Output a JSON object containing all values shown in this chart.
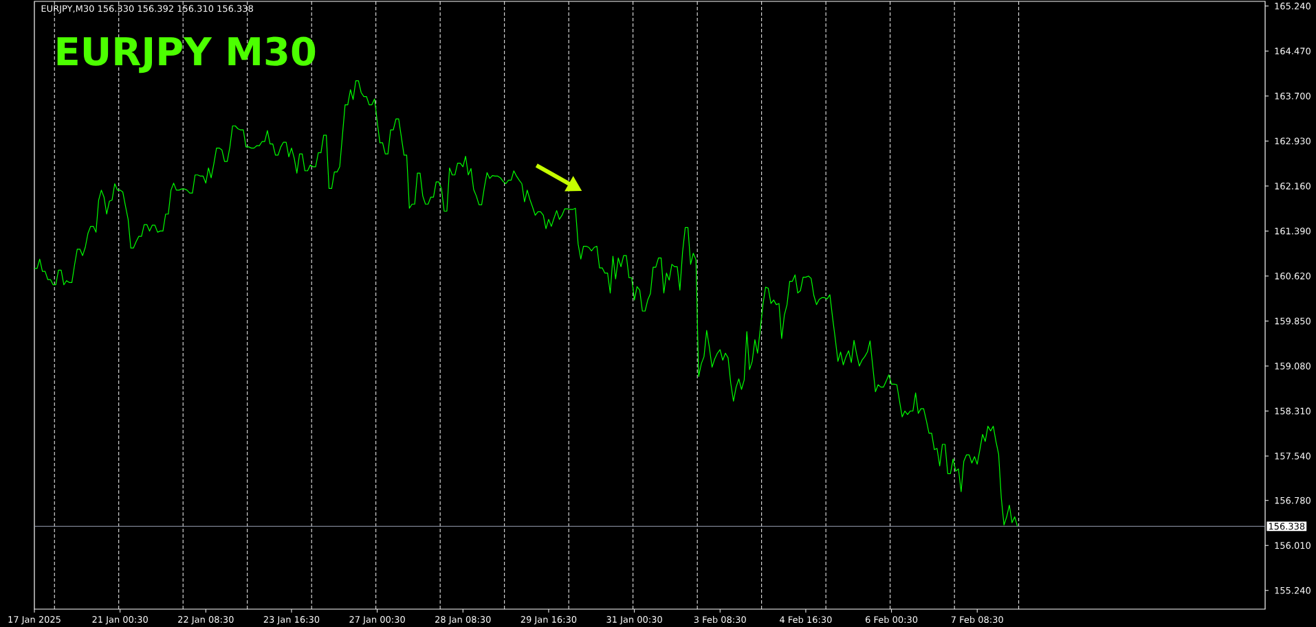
{
  "chart_data": {
    "type": "line",
    "title": "EURJPY  M30",
    "annotations": [
      "EURJPY,M30  156.330 156.392 156.310 156.338"
    ],
    "color": "#00ff00",
    "categories": [
      "17 Jan 2025",
      null,
      null,
      null,
      null,
      null,
      null,
      null,
      null,
      null,
      null,
      null,
      null,
      null,
      null,
      null,
      null,
      null,
      null,
      null,
      null,
      null,
      null,
      null,
      null,
      null,
      null,
      null,
      null,
      null,
      null,
      null,
      "21 Jan 00:30",
      null,
      null,
      null,
      null,
      null,
      null,
      null,
      null,
      null,
      null,
      null,
      null,
      null,
      null,
      null,
      null,
      null,
      null,
      null,
      null,
      null,
      null,
      null,
      null,
      null,
      null,
      null,
      null,
      null,
      null,
      null,
      "22 Jan 08:30",
      null,
      null,
      null,
      null,
      null,
      null,
      null,
      null,
      null,
      null,
      null,
      null,
      null,
      null,
      null,
      null,
      null,
      null,
      null,
      null,
      null,
      null,
      null,
      null,
      null,
      null,
      null,
      null,
      null,
      null,
      null,
      "23 Jan 16:30",
      null,
      null,
      null,
      null,
      null,
      null,
      null,
      null,
      null,
      null,
      null,
      null,
      null,
      null,
      null,
      null,
      null,
      null,
      null,
      null,
      null,
      null,
      null,
      null,
      null,
      null,
      null,
      null,
      null,
      null,
      null,
      "27 Jan 00:30",
      null,
      null,
      null,
      null,
      null,
      null,
      null,
      null,
      null,
      null,
      null,
      null,
      null,
      null,
      null,
      null,
      null,
      null,
      null,
      null,
      null,
      null,
      null,
      null,
      null,
      null,
      null,
      null,
      null,
      null,
      null,
      "28 Jan 08:30",
      null,
      null,
      null,
      null,
      null,
      null,
      null,
      null,
      null,
      null,
      null,
      null,
      null,
      null,
      null,
      null,
      null,
      null,
      null,
      null,
      null,
      null,
      null,
      null,
      null,
      null,
      null,
      null,
      null,
      null,
      null,
      "29 Jan 16:30",
      null,
      null,
      null,
      null,
      null,
      null,
      null,
      null,
      null,
      null,
      null,
      null,
      null,
      null,
      null,
      null,
      null,
      null,
      null,
      null,
      null,
      null,
      null,
      null,
      null,
      null,
      null,
      null,
      null,
      null,
      null,
      "31 Jan 00:30",
      null,
      null,
      null,
      null,
      null,
      null,
      null,
      null,
      null,
      null,
      null,
      null,
      null,
      null,
      null,
      null,
      null,
      null,
      null,
      null,
      null,
      null,
      null,
      null,
      null,
      null,
      null,
      null,
      null,
      null,
      null,
      "3 Feb 08:30",
      null,
      null,
      null,
      null,
      null,
      null,
      null,
      null,
      null,
      null,
      null,
      null,
      null,
      null,
      null,
      null,
      null,
      null,
      null,
      null,
      null,
      null,
      null,
      null,
      null,
      null,
      null,
      null,
      null,
      null,
      null,
      "4 Feb 16:30",
      null,
      null,
      null,
      null,
      null,
      null,
      null,
      null,
      null,
      null,
      null,
      null,
      null,
      null,
      null,
      null,
      null,
      null,
      null,
      null,
      null,
      null,
      null,
      null,
      null,
      null,
      null,
      null,
      null,
      null,
      null,
      "6 Feb 00:30",
      null,
      null,
      null,
      null,
      null,
      null,
      null,
      null,
      null,
      null,
      null,
      null,
      null,
      null,
      null,
      null,
      null,
      null,
      null,
      null,
      null,
      null,
      null,
      null,
      null,
      null,
      null,
      null,
      null,
      null,
      null,
      "7 Feb 08:30",
      null,
      null,
      null,
      null,
      null,
      null,
      null,
      null,
      null,
      null,
      null,
      null,
      null,
      null,
      null,
      null,
      null,
      null,
      null,
      null,
      null,
      null,
      null,
      null,
      null,
      null,
      null,
      null,
      null,
      null,
      null,
      null,
      null,
      null,
      null,
      null,
      null,
      null,
      null,
      null,
      null,
      null,
      null,
      null,
      null,
      null,
      null,
      null,
      null,
      null,
      null,
      null,
      null,
      null,
      null,
      null,
      null,
      null,
      null,
      null,
      null,
      null,
      null,
      null,
      null,
      null,
      null,
      null,
      null,
      null,
      null,
      null,
      null,
      null,
      null,
      null,
      null,
      null,
      null,
      null,
      null,
      null,
      null,
      null,
      null,
      null,
      null,
      null,
      null,
      null,
      null,
      null,
      null,
      null,
      null,
      null,
      null,
      null,
      null,
      null,
      null,
      null,
      null,
      null,
      null,
      null,
      null
    ],
    "values": [
      160.75,
      160.75,
      160.91,
      160.7,
      160.7,
      160.56,
      160.56,
      160.47,
      160.47,
      160.72,
      160.72,
      160.47,
      160.54,
      160.51,
      160.51,
      160.81,
      161.08,
      161.08,
      160.97,
      161.11,
      161.35,
      161.47,
      161.47,
      161.37,
      161.92,
      162.09,
      161.97,
      161.68,
      161.9,
      161.92,
      162.2,
      162.09,
      162.09,
      162.06,
      161.82,
      161.59,
      161.1,
      161.1,
      161.21,
      161.3,
      161.3,
      161.5,
      161.5,
      161.39,
      161.49,
      161.49,
      161.37,
      161.39,
      161.39,
      161.68,
      161.68,
      162.09,
      162.21,
      162.09,
      162.09,
      162.11,
      162.11,
      162.09,
      162.04,
      162.04,
      162.35,
      162.35,
      162.33,
      162.33,
      162.21,
      162.47,
      162.3,
      162.54,
      162.81,
      162.81,
      162.78,
      162.58,
      162.58,
      162.83,
      163.19,
      163.19,
      163.14,
      163.12,
      163.12,
      162.83,
      162.83,
      162.81,
      162.81,
      162.85,
      162.85,
      162.92,
      162.92,
      163.11,
      162.88,
      162.88,
      162.69,
      162.69,
      162.83,
      162.91,
      162.91,
      162.66,
      162.81,
      162.64,
      162.38,
      162.71,
      162.71,
      162.42,
      162.42,
      162.52,
      162.49,
      162.49,
      162.73,
      162.73,
      163.03,
      163.03,
      162.12,
      162.12,
      162.4,
      162.4,
      162.49,
      163.02,
      163.55,
      163.55,
      163.81,
      163.64,
      163.96,
      163.96,
      163.76,
      163.69,
      163.69,
      163.55,
      163.55,
      163.65,
      163.26,
      162.9,
      162.9,
      162.71,
      162.71,
      163.12,
      163.12,
      163.31,
      163.31,
      163.0,
      162.69,
      162.69,
      161.78,
      161.85,
      161.85,
      162.38,
      162.38,
      161.99,
      161.85,
      161.85,
      161.97,
      161.97,
      162.23,
      162.23,
      162.11,
      161.73,
      161.73,
      162.47,
      162.35,
      162.35,
      162.55,
      162.55,
      162.49,
      162.67,
      162.35,
      162.46,
      162.1,
      161.99,
      161.84,
      161.84,
      162.14,
      162.39,
      162.29,
      162.34,
      162.33,
      162.33,
      162.3,
      162.24,
      162.2,
      162.26,
      162.26,
      162.42,
      162.33,
      162.26,
      162.2,
      161.89,
      162.09,
      161.93,
      161.8,
      161.66,
      161.72,
      161.72,
      161.66,
      161.43,
      161.59,
      161.47,
      161.61,
      161.74,
      161.59,
      161.66,
      161.77,
      161.77,
      161.76,
      161.76,
      161.78,
      161.17,
      160.91,
      161.13,
      161.13,
      161.11,
      161.05,
      161.11,
      161.13,
      160.76,
      160.76,
      160.67,
      160.67,
      160.33,
      160.96,
      160.57,
      160.93,
      160.78,
      160.97,
      160.97,
      160.59,
      160.59,
      160.21,
      160.44,
      160.38,
      160.02,
      160.02,
      160.21,
      160.32,
      160.77,
      160.77,
      160.93,
      160.93,
      160.33,
      160.67,
      160.55,
      160.82,
      160.78,
      160.78,
      160.38,
      161.03,
      161.45,
      161.45,
      160.82,
      161.01,
      160.9,
      158.9,
      159.12,
      159.24,
      159.69,
      159.4,
      159.06,
      159.2,
      159.3,
      159.36,
      159.18,
      159.3,
      159.22,
      158.78,
      158.48,
      158.72,
      158.86,
      158.68,
      158.84,
      159.67,
      159.02,
      159.16,
      159.53,
      159.3,
      159.71,
      160.13,
      160.43,
      160.41,
      160.15,
      160.21,
      160.13,
      160.15,
      159.55,
      159.95,
      160.13,
      160.53,
      160.53,
      160.64,
      160.33,
      160.37,
      160.6,
      160.6,
      160.62,
      160.58,
      160.29,
      160.13,
      160.22,
      160.25,
      160.25,
      160.23,
      160.3,
      159.91,
      159.55,
      159.16,
      159.32,
      159.1,
      159.24,
      159.34,
      159.14,
      159.52,
      159.28,
      159.08,
      159.18,
      159.24,
      159.32,
      159.51,
      159.08,
      158.64,
      158.76,
      158.72,
      158.72,
      158.82,
      158.93,
      158.77,
      158.77,
      158.76,
      158.48,
      158.21,
      158.31,
      158.25,
      158.31,
      158.31,
      158.62,
      158.27,
      158.35,
      158.35,
      158.15,
      157.93,
      157.93,
      157.65,
      157.67,
      157.37,
      157.74,
      157.74,
      157.24,
      157.24,
      157.49,
      157.28,
      157.32,
      156.93,
      157.45,
      157.56,
      157.56,
      157.42,
      157.53,
      157.4,
      157.65,
      157.91,
      157.79,
      158.05,
      157.97,
      158.05,
      157.79,
      157.57,
      156.82,
      156.36,
      156.5,
      156.7,
      156.4,
      156.5,
      156.34,
      null,
      null,
      null,
      null,
      null,
      null,
      null,
      null,
      null,
      null,
      null,
      null,
      null,
      null,
      null,
      null,
      null,
      null,
      null,
      null,
      null,
      null,
      null,
      null,
      null,
      null,
      null,
      null,
      null,
      null,
      null,
      null,
      null,
      null,
      null,
      null,
      null,
      null,
      null,
      null,
      null,
      null,
      null,
      null,
      null,
      null,
      null,
      null,
      null,
      null,
      null,
      null,
      null,
      null,
      null,
      null,
      null,
      null,
      null,
      null,
      null,
      null,
      null,
      null,
      null,
      null,
      null,
      null,
      null,
      null,
      null,
      null,
      null,
      null,
      null,
      null,
      null,
      null,
      null,
      null,
      null,
      null,
      null,
      null,
      null,
      null,
      null,
      null,
      null,
      null,
      null,
      null
    ],
    "ylim": [
      154.92,
      165.32
    ],
    "yticks": [
      {
        "value": 155.24,
        "label": "155.240"
      },
      {
        "value": 156.01,
        "label": "156.010"
      },
      {
        "value": 156.78,
        "label": "156.780"
      },
      {
        "value": 157.54,
        "label": "157.540"
      },
      {
        "value": 158.31,
        "label": "158.310"
      },
      {
        "value": 159.08,
        "label": "159.080"
      },
      {
        "value": 159.85,
        "label": "159.850"
      },
      {
        "value": 160.62,
        "label": "160.620"
      },
      {
        "value": 161.39,
        "label": "161.390"
      },
      {
        "value": 162.16,
        "label": "162.160"
      },
      {
        "value": 162.93,
        "label": "162.930"
      },
      {
        "value": 163.7,
        "label": "163.700"
      },
      {
        "value": 164.47,
        "label": "164.470"
      },
      {
        "value": 165.24,
        "label": "165.240"
      }
    ],
    "ref_lines": [
      {
        "axis": "y",
        "value": 156.338,
        "label": "156.338",
        "color": "#9aa3b5",
        "line_style": "solid"
      }
    ]
  }
}
